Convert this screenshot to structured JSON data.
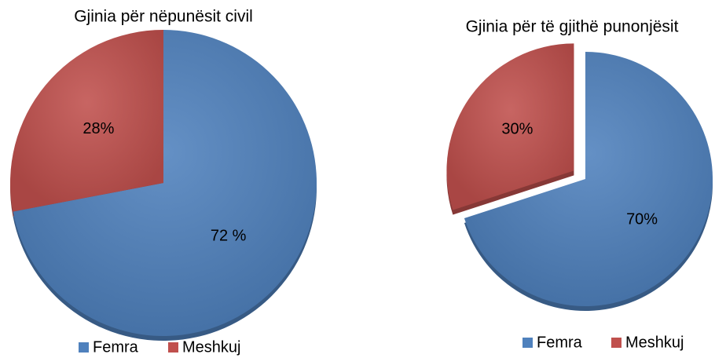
{
  "chart_data": [
    {
      "type": "pie",
      "title": "Gjinia për nëpunësit civil",
      "categories": [
        "Femra",
        "Meshkuj"
      ],
      "values": [
        72,
        28
      ],
      "value_labels": [
        "72 %",
        "28%"
      ],
      "colors": [
        "#4f81bd",
        "#c0504d"
      ],
      "legend": "bottom"
    },
    {
      "type": "pie",
      "title": "Gjinia për të gjithë punonjësit",
      "categories": [
        "Femra",
        "Meshkuj"
      ],
      "values": [
        70,
        30
      ],
      "value_labels": [
        "70%",
        "30%"
      ],
      "colors": [
        "#4f81bd",
        "#c0504d"
      ],
      "explode": [
        false,
        true
      ],
      "legend": "bottom"
    }
  ]
}
